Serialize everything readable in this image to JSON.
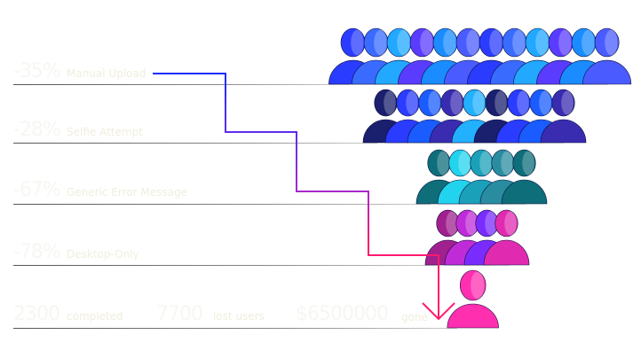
{
  "funnel": [
    {
      "percent": "-35%",
      "label": "Manual Upload",
      "people": 12
    },
    {
      "percent": "-28%",
      "label": "Selfie Attempt",
      "people": 9
    },
    {
      "percent": "-67%",
      "label": "Generic Error Message",
      "people": 5
    },
    {
      "percent": "-78%",
      "label": "Desktop-Only",
      "people": 4
    }
  ],
  "summary": {
    "completed_value": "2300",
    "completed_label": "completed",
    "lost_value": "7700",
    "lost_label": "lost users",
    "money_value": "$6500000",
    "money_label": "gone",
    "people": 1
  },
  "colors": {
    "path_start": "#1a2cff",
    "path_mid": "#8a2be2",
    "path_end": "#ff1a6e",
    "people_blue": "#2a5cff",
    "people_cyan": "#22d3ee",
    "people_pink": "#ff2fb0"
  }
}
